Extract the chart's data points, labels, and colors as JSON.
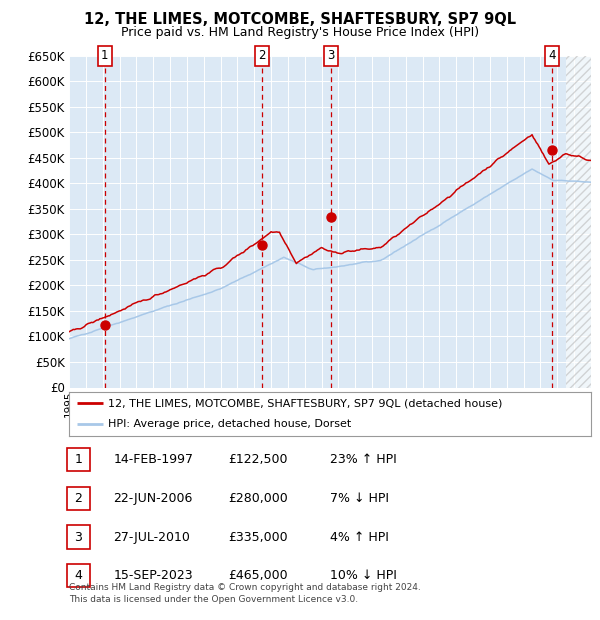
{
  "title": "12, THE LIMES, MOTCOMBE, SHAFTESBURY, SP7 9QL",
  "subtitle": "Price paid vs. HM Land Registry's House Price Index (HPI)",
  "ylim": [
    0,
    650000
  ],
  "yticks": [
    0,
    50000,
    100000,
    150000,
    200000,
    250000,
    300000,
    350000,
    400000,
    450000,
    500000,
    550000,
    600000,
    650000
  ],
  "ytick_labels": [
    "£0",
    "£50K",
    "£100K",
    "£150K",
    "£200K",
    "£250K",
    "£300K",
    "£350K",
    "£400K",
    "£450K",
    "£500K",
    "£550K",
    "£600K",
    "£650K"
  ],
  "xlim_start": 1995.0,
  "xlim_end": 2026.0,
  "bg_color": "#dce9f5",
  "hpi_line_color": "#a8c8e8",
  "price_line_color": "#cc0000",
  "dashed_vline_color": "#cc0000",
  "sale_marker_color": "#cc0000",
  "sales": [
    {
      "num": 1,
      "year": 1997.12,
      "price": 122500,
      "label": "1"
    },
    {
      "num": 2,
      "year": 2006.47,
      "price": 280000,
      "label": "2"
    },
    {
      "num": 3,
      "year": 2010.57,
      "price": 335000,
      "label": "3"
    },
    {
      "num": 4,
      "year": 2023.71,
      "price": 465000,
      "label": "4"
    }
  ],
  "legend_line1": "12, THE LIMES, MOTCOMBE, SHAFTESBURY, SP7 9QL (detached house)",
  "legend_line2": "HPI: Average price, detached house, Dorset",
  "table_rows": [
    {
      "num": "1",
      "date": "14-FEB-1997",
      "price": "£122,500",
      "change": "23% ↑ HPI"
    },
    {
      "num": "2",
      "date": "22-JUN-2006",
      "price": "£280,000",
      "change": "7% ↓ HPI"
    },
    {
      "num": "3",
      "date": "27-JUL-2010",
      "price": "£335,000",
      "change": "4% ↑ HPI"
    },
    {
      "num": "4",
      "date": "15-SEP-2023",
      "price": "£465,000",
      "change": "10% ↓ HPI"
    }
  ],
  "footer": "Contains HM Land Registry data © Crown copyright and database right 2024.\nThis data is licensed under the Open Government Licence v3.0."
}
